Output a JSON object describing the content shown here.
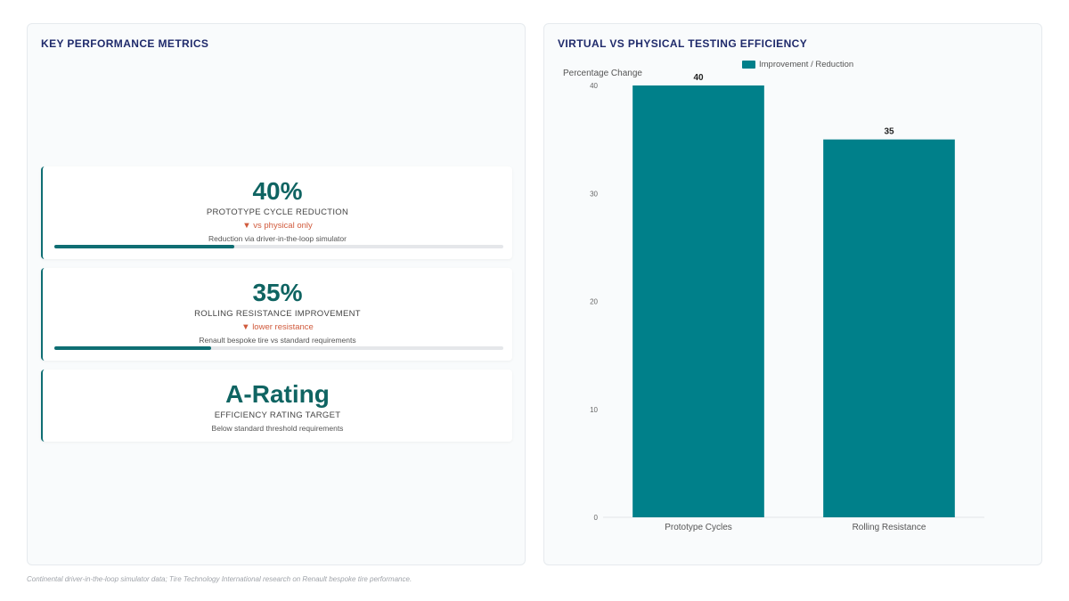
{
  "left_panel": {
    "title": "KEY PERFORMANCE METRICS",
    "metrics": [
      {
        "value": "40%",
        "label": "PROTOTYPE CYCLE REDUCTION",
        "delta": "▼ vs physical only",
        "description": "Reduction via driver-in-the-loop simulator",
        "progress": 0.4
      },
      {
        "value": "35%",
        "label": "ROLLING RESISTANCE IMPROVEMENT",
        "delta": "▼ lower resistance",
        "description": "Renault bespoke tire vs standard requirements",
        "progress": 0.35
      },
      {
        "value": "A-Rating",
        "label": "EFFICIENCY RATING TARGET",
        "description": "Below standard threshold requirements"
      }
    ]
  },
  "right_panel": {
    "title": "VIRTUAL VS PHYSICAL TESTING EFFICIENCY"
  },
  "chart_data": {
    "type": "bar",
    "categories": [
      "Prototype Cycles",
      "Rolling Resistance"
    ],
    "series": [
      {
        "name": "Improvement / Reduction",
        "values": [
          40,
          35
        ],
        "color": "#00808a"
      }
    ],
    "ylabel": "Percentage Change",
    "ylim": [
      0,
      40
    ],
    "yticks": [
      0,
      10,
      20,
      30,
      40
    ],
    "legend": "top-center",
    "data_labels": true,
    "grid": false
  },
  "footer": "Continental driver-in-the-loop simulator data; Tire Technology International research on Renault bespoke tire performance."
}
